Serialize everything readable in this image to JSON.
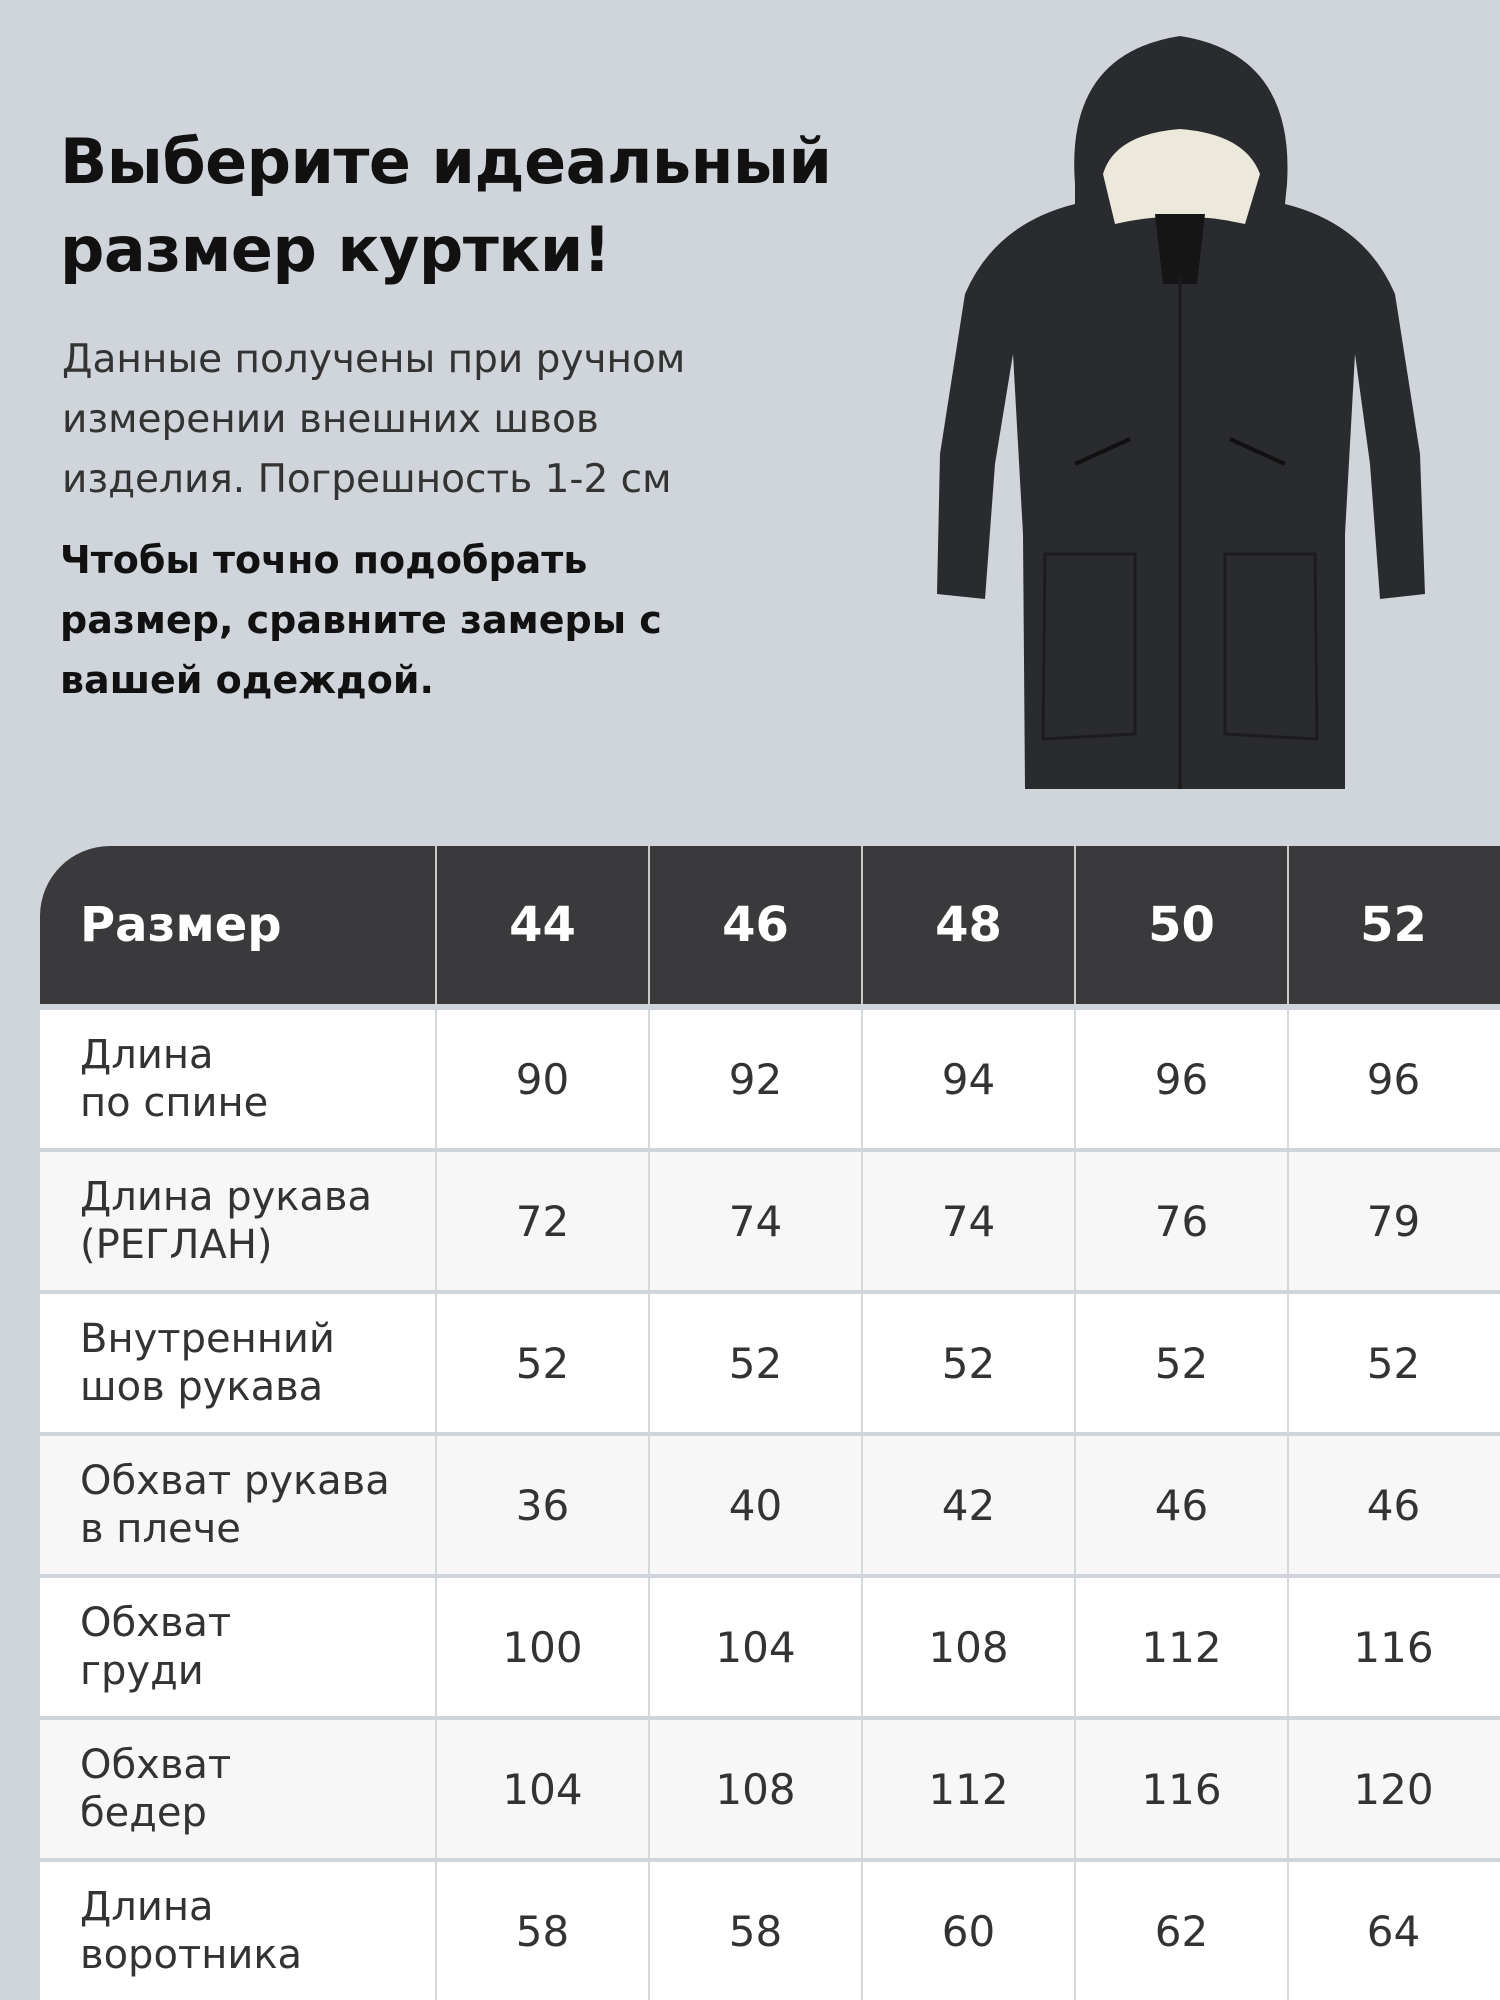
{
  "header": {
    "title_line1": "Выберите идеальный",
    "title_line2": "размер куртки!",
    "description": "Данные получены при ручном измерении внешних швов изделия. Погрешность 1-2 см",
    "note": "Чтобы точно подобрать размер, сравните замеры с вашей одеждой."
  },
  "product_image": {
    "description": "black hooded parka jacket",
    "color": "#2a2b2f"
  },
  "size_table": {
    "header": {
      "label": "Размер",
      "sizes": [
        "44",
        "46",
        "48",
        "50",
        "52"
      ]
    },
    "rows": [
      {
        "label": "Длина\nпо спине",
        "values": [
          "90",
          "92",
          "94",
          "96",
          "96"
        ]
      },
      {
        "label": "Длина рукава\n(РЕГЛАН)",
        "values": [
          "72",
          "74",
          "74",
          "76",
          "79"
        ]
      },
      {
        "label": "Внутренний\nшов рукава",
        "values": [
          "52",
          "52",
          "52",
          "52",
          "52"
        ]
      },
      {
        "label": "Обхват рукава\nв плече",
        "values": [
          "36",
          "40",
          "42",
          "46",
          "46"
        ]
      },
      {
        "label": "Обхват\nгруди",
        "values": [
          "100",
          "104",
          "108",
          "112",
          "116"
        ]
      },
      {
        "label": "Обхват\nбедер",
        "values": [
          "104",
          "108",
          "112",
          "116",
          "120"
        ]
      },
      {
        "label": "Длина\nворотника",
        "values": [
          "58",
          "58",
          "60",
          "62",
          "64"
        ]
      }
    ]
  },
  "colors": {
    "background": "#d0d5dc",
    "header_bg": "#3a3a3c",
    "row_alt": "#f7f7f7"
  }
}
